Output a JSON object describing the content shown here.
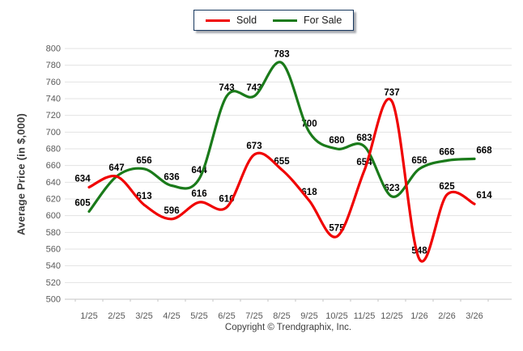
{
  "legend": {
    "items": [
      {
        "label": "Sold",
        "color": "#f00000"
      },
      {
        "label": "For Sale",
        "color": "#1a7a1a"
      }
    ]
  },
  "copyright": "Copyright © Trendgraphix, Inc.",
  "chart_data": {
    "type": "line",
    "title": "",
    "ylabel": "Average Price (in $,000)",
    "xlabel": "",
    "categories": [
      "1/25",
      "2/25",
      "3/25",
      "4/25",
      "5/25",
      "6/25",
      "7/25",
      "8/25",
      "9/25",
      "10/25",
      "11/25",
      "12/25",
      "1/26",
      "2/26",
      "3/26"
    ],
    "series": [
      {
        "name": "Sold",
        "color": "#f00000",
        "values": [
          634,
          647,
          613,
          596,
          616,
          610,
          673,
          655,
          618,
          575,
          654,
          737,
          548,
          625,
          614
        ]
      },
      {
        "name": "For Sale",
        "color": "#1a7a1a",
        "values": [
          605,
          647,
          656,
          636,
          644,
          743,
          743,
          783,
          700,
          680,
          683,
          623,
          656,
          666,
          668
        ],
        "hide_labels": [
          1
        ]
      }
    ],
    "ylim": [
      500,
      800
    ],
    "ytick_step": 20,
    "grid": true,
    "legend_position": "top-center",
    "line_style": "smooth",
    "colors": {
      "gridline": "#e3e3e3",
      "axis_line": "#c6c6c6",
      "tick_label": "#595959",
      "data_label": "#000000"
    }
  }
}
